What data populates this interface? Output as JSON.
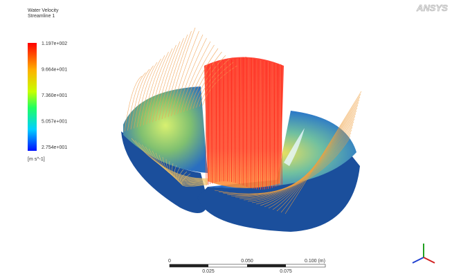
{
  "legend": {
    "title": "Water Velocity",
    "subtitle": "Streamline 1",
    "labels": [
      "1.197e+002",
      "9.664e+001",
      "7.360e+001",
      "5.057e+001",
      "2.754e+001"
    ],
    "unit": "[m s^-1]"
  },
  "logo": "ANSYS",
  "scale_bar": {
    "top_labels": [
      "0",
      "0.050",
      "0.100 (m)"
    ],
    "bottom_labels": [
      "0.025",
      "0.075"
    ]
  }
}
